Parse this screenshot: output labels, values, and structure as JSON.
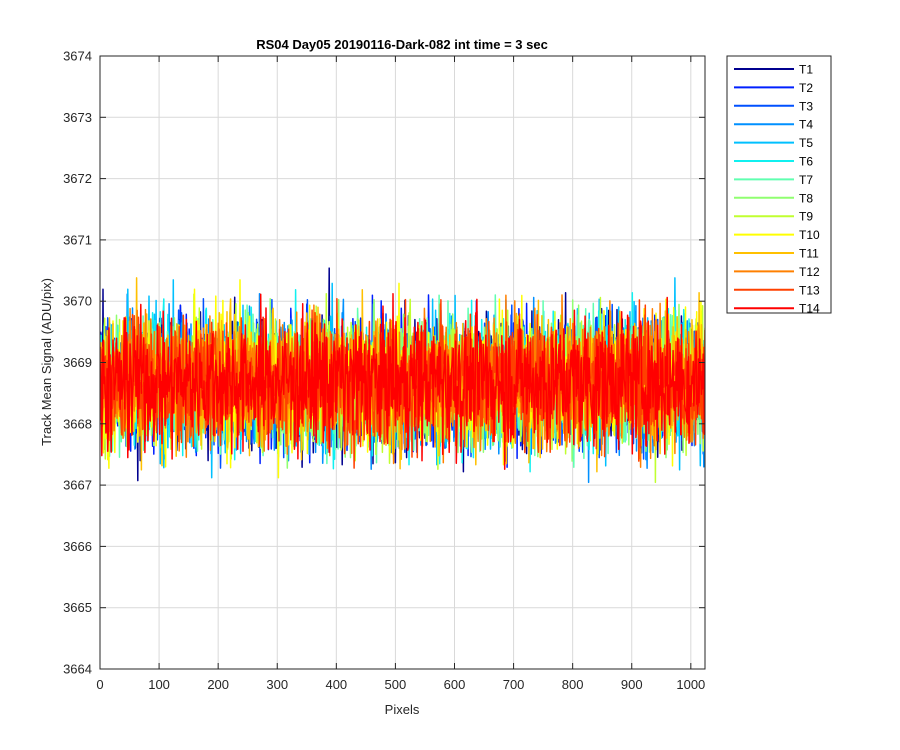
{
  "chart_data": {
    "type": "line",
    "title": "RS04 Day05 20190116-Dark-082 int time = 3 sec",
    "xlabel": "Pixels",
    "ylabel": "Track Mean Signal (ADU/pix)",
    "xlim": [
      0,
      1024
    ],
    "ylim": [
      3664,
      3674
    ],
    "xticks": [
      0,
      100,
      200,
      300,
      400,
      500,
      600,
      700,
      800,
      900,
      1000
    ],
    "yticks": [
      3664,
      3665,
      3666,
      3667,
      3668,
      3669,
      3670,
      3671,
      3672,
      3673,
      3674
    ],
    "grid": true,
    "legend_position": "outside-top-right",
    "n_points_per_series": 1024,
    "center": 3668.7,
    "noise_std": 0.95,
    "series": [
      {
        "name": "T1",
        "color": "#00008f"
      },
      {
        "name": "T2",
        "color": "#0020ff"
      },
      {
        "name": "T3",
        "color": "#0050ff"
      },
      {
        "name": "T4",
        "color": "#0090ff"
      },
      {
        "name": "T5",
        "color": "#00c0ff"
      },
      {
        "name": "T6",
        "color": "#10f0f0"
      },
      {
        "name": "T7",
        "color": "#60ffb0"
      },
      {
        "name": "T8",
        "color": "#90ff70"
      },
      {
        "name": "T9",
        "color": "#c0ff30"
      },
      {
        "name": "T10",
        "color": "#ffff00"
      },
      {
        "name": "T11",
        "color": "#ffc000"
      },
      {
        "name": "T12",
        "color": "#ff8000"
      },
      {
        "name": "T13",
        "color": "#ff4000"
      },
      {
        "name": "T14",
        "color": "#ff0000"
      }
    ]
  }
}
